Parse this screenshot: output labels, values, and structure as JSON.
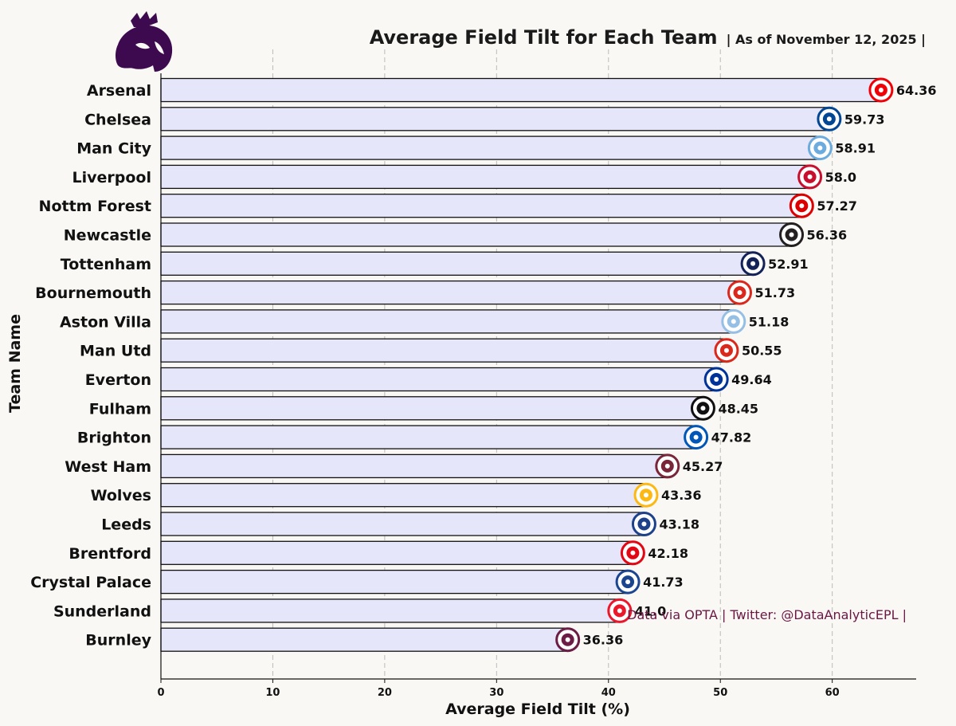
{
  "header": {
    "title": "Average Field Tilt for Each Team",
    "subtitle": "| As of November 12, 2025 |"
  },
  "credit": "Data via OPTA | Twitter: @DataAnalyticEPL |",
  "colors": {
    "background": "#faf8f4",
    "bar_fill": "#e6e6fa",
    "bar_edge": "#111111",
    "logo": "#3d0a4f",
    "credit_text": "#6b1744"
  },
  "chart_data": {
    "type": "bar",
    "orientation": "horizontal",
    "categories": [
      "Arsenal",
      "Chelsea",
      "Man City",
      "Liverpool",
      "Nottm Forest",
      "Newcastle",
      "Tottenham",
      "Bournemouth",
      "Aston Villa",
      "Man Utd",
      "Everton",
      "Fulham",
      "Brighton",
      "West Ham",
      "Wolves",
      "Leeds",
      "Brentford",
      "Crystal Palace",
      "Sunderland",
      "Burnley"
    ],
    "values": [
      64.36,
      59.73,
      58.91,
      58.0,
      57.27,
      56.36,
      52.91,
      51.73,
      51.18,
      50.55,
      49.64,
      48.45,
      47.82,
      45.27,
      43.36,
      43.18,
      42.18,
      41.73,
      41.0,
      36.36
    ],
    "value_labels": [
      "64.36",
      "59.73",
      "58.91",
      "58.0",
      "57.27",
      "56.36",
      "52.91",
      "51.73",
      "51.18",
      "50.55",
      "49.64",
      "48.45",
      "47.82",
      "45.27",
      "43.36",
      "43.18",
      "42.18",
      "41.73",
      "41.0",
      "36.36"
    ],
    "badge_colors": [
      "#ef0107",
      "#034694",
      "#6cabdd",
      "#c8102e",
      "#dd0000",
      "#241f20",
      "#132257",
      "#da291c",
      "#95bfe5",
      "#da291c",
      "#003399",
      "#111111",
      "#0057b8",
      "#7a263a",
      "#fdb913",
      "#1d428a",
      "#e30613",
      "#1b458f",
      "#eb172b",
      "#6c1d45"
    ],
    "xlabel": "Average Field Tilt (%)",
    "ylabel": "Team Name",
    "xlim": [
      0,
      67.5
    ],
    "xticks": [
      0,
      10,
      20,
      30,
      40,
      50,
      60
    ],
    "grid": "vertical-dashed"
  }
}
